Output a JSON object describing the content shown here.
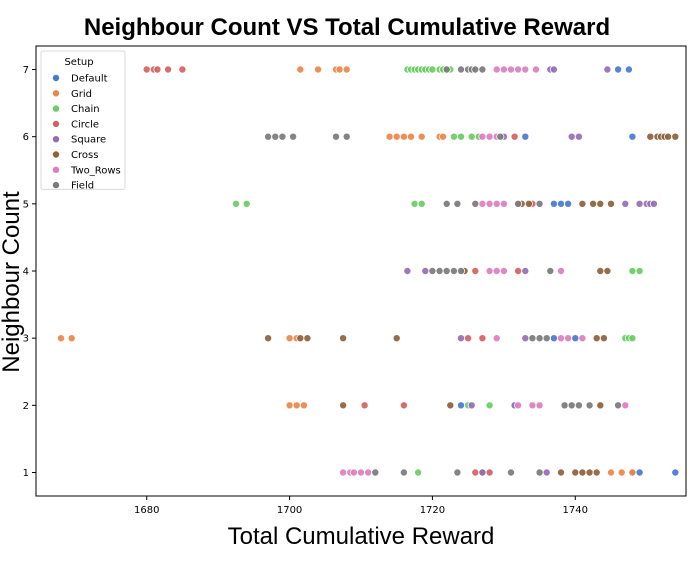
{
  "chart_data": {
    "type": "scatter",
    "title": "Neighbour Count VS Total Cumulative Reward",
    "xlabel": "Total Cumulative Reward",
    "ylabel": "Neighbour Count",
    "xlim": [
      1664.5,
      1755.5
    ],
    "ylim": [
      0.65,
      7.35
    ],
    "xticks": [
      1680,
      1700,
      1720,
      1740
    ],
    "yticks": [
      1,
      2,
      3,
      4,
      5,
      6,
      7
    ],
    "grid": false,
    "legend": {
      "title": "Setup",
      "placement": "top-left"
    },
    "series": [
      {
        "name": "Default",
        "color": "#4878cf",
        "points": [
          [
            1746,
            7
          ],
          [
            1747.5,
            7
          ],
          [
            1733,
            6
          ],
          [
            1748,
            6
          ],
          [
            1737,
            5
          ],
          [
            1738,
            5
          ],
          [
            1739,
            5
          ],
          [
            1737,
            3
          ],
          [
            1740,
            3
          ],
          [
            1724,
            2
          ],
          [
            1748,
            1
          ],
          [
            1749,
            1
          ],
          [
            1754,
            1
          ]
        ]
      },
      {
        "name": "Grid",
        "color": "#ee854a",
        "points": [
          [
            1701.5,
            7
          ],
          [
            1704,
            7
          ],
          [
            1706.5,
            7
          ],
          [
            1707,
            7
          ],
          [
            1708,
            7
          ],
          [
            1714,
            6
          ],
          [
            1715,
            6
          ],
          [
            1716,
            6
          ],
          [
            1717,
            6
          ],
          [
            1718.5,
            6
          ],
          [
            1721,
            6
          ],
          [
            1721.5,
            6
          ],
          [
            1668,
            3
          ],
          [
            1669.5,
            3
          ],
          [
            1700,
            3
          ],
          [
            1701,
            3
          ],
          [
            1700,
            2
          ],
          [
            1701,
            2
          ],
          [
            1702,
            2
          ],
          [
            1745,
            1
          ],
          [
            1746.5,
            1
          ],
          [
            1748,
            1
          ]
        ]
      },
      {
        "name": "Chain",
        "color": "#6acc64",
        "points": [
          [
            1716.5,
            7
          ],
          [
            1717,
            7
          ],
          [
            1717.5,
            7
          ],
          [
            1718,
            7
          ],
          [
            1718.5,
            7
          ],
          [
            1719,
            7
          ],
          [
            1719.5,
            7
          ],
          [
            1720,
            7
          ],
          [
            1721,
            7
          ],
          [
            1721.5,
            7
          ],
          [
            1722,
            7
          ],
          [
            1722.5,
            7
          ],
          [
            1723,
            6
          ],
          [
            1724,
            6
          ],
          [
            1725.5,
            6
          ],
          [
            1726.5,
            6
          ],
          [
            1692.5,
            5
          ],
          [
            1694,
            5
          ],
          [
            1717.5,
            5
          ],
          [
            1718.5,
            5
          ],
          [
            1748,
            4
          ],
          [
            1749,
            4
          ],
          [
            1747,
            3
          ],
          [
            1747.5,
            3
          ],
          [
            1748,
            3
          ],
          [
            1725,
            2
          ],
          [
            1728,
            2
          ],
          [
            1731.5,
            2
          ],
          [
            1718,
            1
          ]
        ]
      },
      {
        "name": "Circle",
        "color": "#d65f5f",
        "points": [
          [
            1680,
            7
          ],
          [
            1681,
            7
          ],
          [
            1681.5,
            7
          ],
          [
            1683,
            7
          ],
          [
            1685,
            7
          ],
          [
            1731.5,
            6
          ],
          [
            1732,
            5
          ],
          [
            1734,
            5
          ],
          [
            1726,
            4
          ],
          [
            1732,
            4
          ],
          [
            1725,
            3
          ],
          [
            1727,
            3
          ],
          [
            1710.5,
            2
          ],
          [
            1716,
            2
          ],
          [
            1726,
            1
          ],
          [
            1727,
            1
          ],
          [
            1728,
            1
          ]
        ]
      },
      {
        "name": "Square",
        "color": "#956cb4",
        "points": [
          [
            1736.5,
            7
          ],
          [
            1737,
            7
          ],
          [
            1744.5,
            7
          ],
          [
            1730,
            6
          ],
          [
            1739.5,
            6
          ],
          [
            1740.5,
            6
          ],
          [
            1749,
            5
          ],
          [
            1750,
            5
          ],
          [
            1750.5,
            5
          ],
          [
            1751,
            5
          ],
          [
            1747,
            5
          ],
          [
            1716.5,
            4
          ],
          [
            1719,
            4
          ],
          [
            1733,
            4
          ],
          [
            1724,
            3
          ],
          [
            1733,
            3
          ],
          [
            1725.5,
            2
          ],
          [
            1731.5,
            2
          ],
          [
            1727,
            1
          ],
          [
            1736,
            1
          ]
        ]
      },
      {
        "name": "Cross",
        "color": "#8c613c",
        "points": [
          [
            1750.5,
            6
          ],
          [
            1751.5,
            6
          ],
          [
            1752,
            6
          ],
          [
            1752.5,
            6
          ],
          [
            1753,
            6
          ],
          [
            1754,
            6
          ],
          [
            1741,
            5
          ],
          [
            1742.5,
            5
          ],
          [
            1743.5,
            5
          ],
          [
            1745,
            5
          ],
          [
            1732.5,
            5
          ],
          [
            1733.5,
            5
          ],
          [
            1743.5,
            4
          ],
          [
            1744.5,
            4
          ],
          [
            1724.5,
            4
          ],
          [
            1697,
            3
          ],
          [
            1701.5,
            3
          ],
          [
            1702.5,
            3
          ],
          [
            1707.5,
            3
          ],
          [
            1715,
            3
          ],
          [
            1743,
            3
          ],
          [
            1744,
            3
          ],
          [
            1707.5,
            2
          ],
          [
            1722.5,
            2
          ],
          [
            1743.5,
            2
          ],
          [
            1738,
            1
          ],
          [
            1740,
            1
          ],
          [
            1741,
            1
          ],
          [
            1742,
            1
          ],
          [
            1743,
            1
          ]
        ]
      },
      {
        "name": "Two_Rows",
        "color": "#dc7ec0",
        "points": [
          [
            1729,
            7
          ],
          [
            1730,
            7
          ],
          [
            1731,
            7
          ],
          [
            1732,
            7
          ],
          [
            1733,
            7
          ],
          [
            1734.5,
            7
          ],
          [
            1727,
            6
          ],
          [
            1728,
            6
          ],
          [
            1729,
            6
          ],
          [
            1727,
            5
          ],
          [
            1728,
            5
          ],
          [
            1729,
            5
          ],
          [
            1730,
            5
          ],
          [
            1728,
            4
          ],
          [
            1729,
            4
          ],
          [
            1730,
            4
          ],
          [
            1738,
            4
          ],
          [
            1729,
            3
          ],
          [
            1738,
            3
          ],
          [
            1739,
            3
          ],
          [
            1741,
            3
          ],
          [
            1732,
            2
          ],
          [
            1734,
            2
          ],
          [
            1735,
            2
          ],
          [
            1747,
            2
          ],
          [
            1707.5,
            1
          ],
          [
            1708.5,
            1
          ],
          [
            1709,
            1
          ],
          [
            1710,
            1
          ],
          [
            1711,
            1
          ]
        ]
      },
      {
        "name": "Field",
        "color": "#797979",
        "points": [
          [
            1722,
            7
          ],
          [
            1724,
            7
          ],
          [
            1725,
            7
          ],
          [
            1725.5,
            7
          ],
          [
            1726,
            7
          ],
          [
            1727,
            7
          ],
          [
            1697,
            6
          ],
          [
            1698,
            6
          ],
          [
            1699,
            6
          ],
          [
            1700.5,
            6
          ],
          [
            1706.5,
            6
          ],
          [
            1708,
            6
          ],
          [
            1729.5,
            6
          ],
          [
            1722,
            5
          ],
          [
            1723.5,
            5
          ],
          [
            1726,
            5
          ],
          [
            1732,
            5
          ],
          [
            1735,
            5
          ],
          [
            1720,
            4
          ],
          [
            1721,
            4
          ],
          [
            1722,
            4
          ],
          [
            1723,
            4
          ],
          [
            1724,
            4
          ],
          [
            1736.5,
            4
          ],
          [
            1734,
            3
          ],
          [
            1735,
            3
          ],
          [
            1736,
            3
          ],
          [
            1738.5,
            2
          ],
          [
            1739.5,
            2
          ],
          [
            1740.5,
            2
          ],
          [
            1742,
            2
          ],
          [
            1746,
            2
          ],
          [
            1712,
            1
          ],
          [
            1716,
            1
          ],
          [
            1723.5,
            1
          ],
          [
            1731,
            1
          ],
          [
            1735,
            1
          ]
        ]
      }
    ]
  }
}
